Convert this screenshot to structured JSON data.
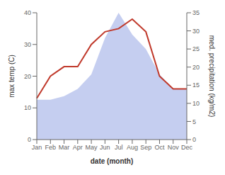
{
  "chart_data": {
    "type": "line",
    "xlabel": "date (month)",
    "ylabel": "max temp (C)",
    "y2label": "med. precipitation (kg/m2)",
    "categories": [
      "Jan",
      "Feb",
      "Mar",
      "Apr",
      "May",
      "Jun",
      "Jul",
      "Aug",
      "Sep",
      "Oct",
      "Nov",
      "Dec"
    ],
    "series": [
      {
        "type": "area",
        "axis": "y2",
        "color": "#c5cef0",
        "values": [
          11,
          11,
          12,
          14,
          18,
          28,
          35,
          29,
          25,
          18,
          14,
          14
        ]
      },
      {
        "type": "line",
        "color": "#c0392b",
        "values": [
          13,
          20,
          23,
          23,
          30,
          34,
          35,
          38,
          34,
          20,
          16,
          16
        ]
      }
    ],
    "ylim": [
      0,
      40
    ],
    "yticks": [
      0,
      10,
      20,
      30,
      40
    ],
    "y2lim": [
      0,
      35
    ],
    "y2ticks": [
      0,
      5,
      10,
      15,
      20,
      25,
      30,
      35
    ]
  }
}
